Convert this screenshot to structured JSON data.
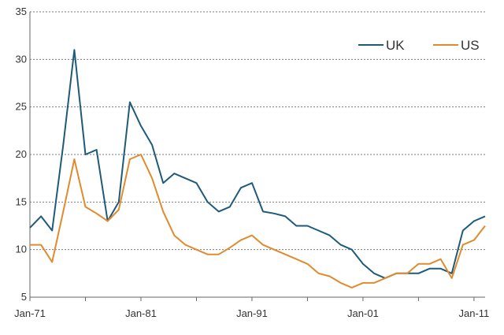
{
  "chart_data": {
    "type": "line",
    "title": "",
    "xlabel": "",
    "ylabel": "",
    "x_ticks": [
      "Jan-71",
      "Jan-81",
      "Jan-91",
      "Jan-01",
      "Jan-11"
    ],
    "x_range": [
      "Jan-71",
      "Jan-12"
    ],
    "ylim": [
      5,
      35
    ],
    "y_ticks": [
      5,
      10,
      15,
      20,
      25,
      30,
      35
    ],
    "grid": "horizontal dotted",
    "legend_position": "top-right",
    "x": [
      "1971-01",
      "1972-01",
      "1973-01",
      "1974-01",
      "1975-01",
      "1976-01",
      "1977-01",
      "1978-01",
      "1979-01",
      "1980-01",
      "1981-01",
      "1982-01",
      "1983-01",
      "1984-01",
      "1985-01",
      "1986-01",
      "1987-01",
      "1988-01",
      "1989-01",
      "1990-01",
      "1991-01",
      "1992-01",
      "1993-01",
      "1994-01",
      "1995-01",
      "1996-01",
      "1997-01",
      "1998-01",
      "1999-01",
      "2000-01",
      "2001-01",
      "2002-01",
      "2003-01",
      "2004-01",
      "2005-01",
      "2006-01",
      "2007-01",
      "2008-01",
      "2009-01",
      "2010-01",
      "2011-01",
      "2012-01"
    ],
    "series": [
      {
        "name": "UK",
        "color": "#1f5b79",
        "values": [
          12.3,
          13.5,
          12.0,
          21.0,
          31.0,
          20.0,
          20.5,
          13.0,
          15.0,
          25.5,
          23.0,
          21.0,
          17.0,
          18.0,
          17.5,
          17.0,
          15.0,
          14.0,
          14.5,
          16.5,
          17.0,
          14.0,
          13.8,
          13.5,
          12.5,
          12.5,
          12.0,
          11.5,
          10.5,
          10.0,
          8.5,
          7.5,
          7.0,
          7.5,
          7.5,
          7.5,
          8.0,
          8.0,
          7.5,
          12.0,
          13.0,
          13.5
        ]
      },
      {
        "name": "US",
        "color": "#e08b2e",
        "values": [
          10.5,
          10.5,
          8.7,
          14.0,
          19.5,
          14.5,
          13.8,
          13.0,
          14.2,
          19.5,
          20.0,
          17.5,
          14.0,
          11.5,
          10.5,
          10.0,
          9.5,
          9.5,
          10.2,
          11.0,
          11.5,
          10.5,
          10.0,
          9.5,
          9.0,
          8.5,
          7.5,
          7.2,
          6.5,
          6.0,
          6.5,
          6.5,
          7.0,
          7.5,
          7.5,
          8.5,
          8.5,
          9.0,
          7.0,
          10.5,
          11.0,
          12.5
        ]
      }
    ]
  }
}
